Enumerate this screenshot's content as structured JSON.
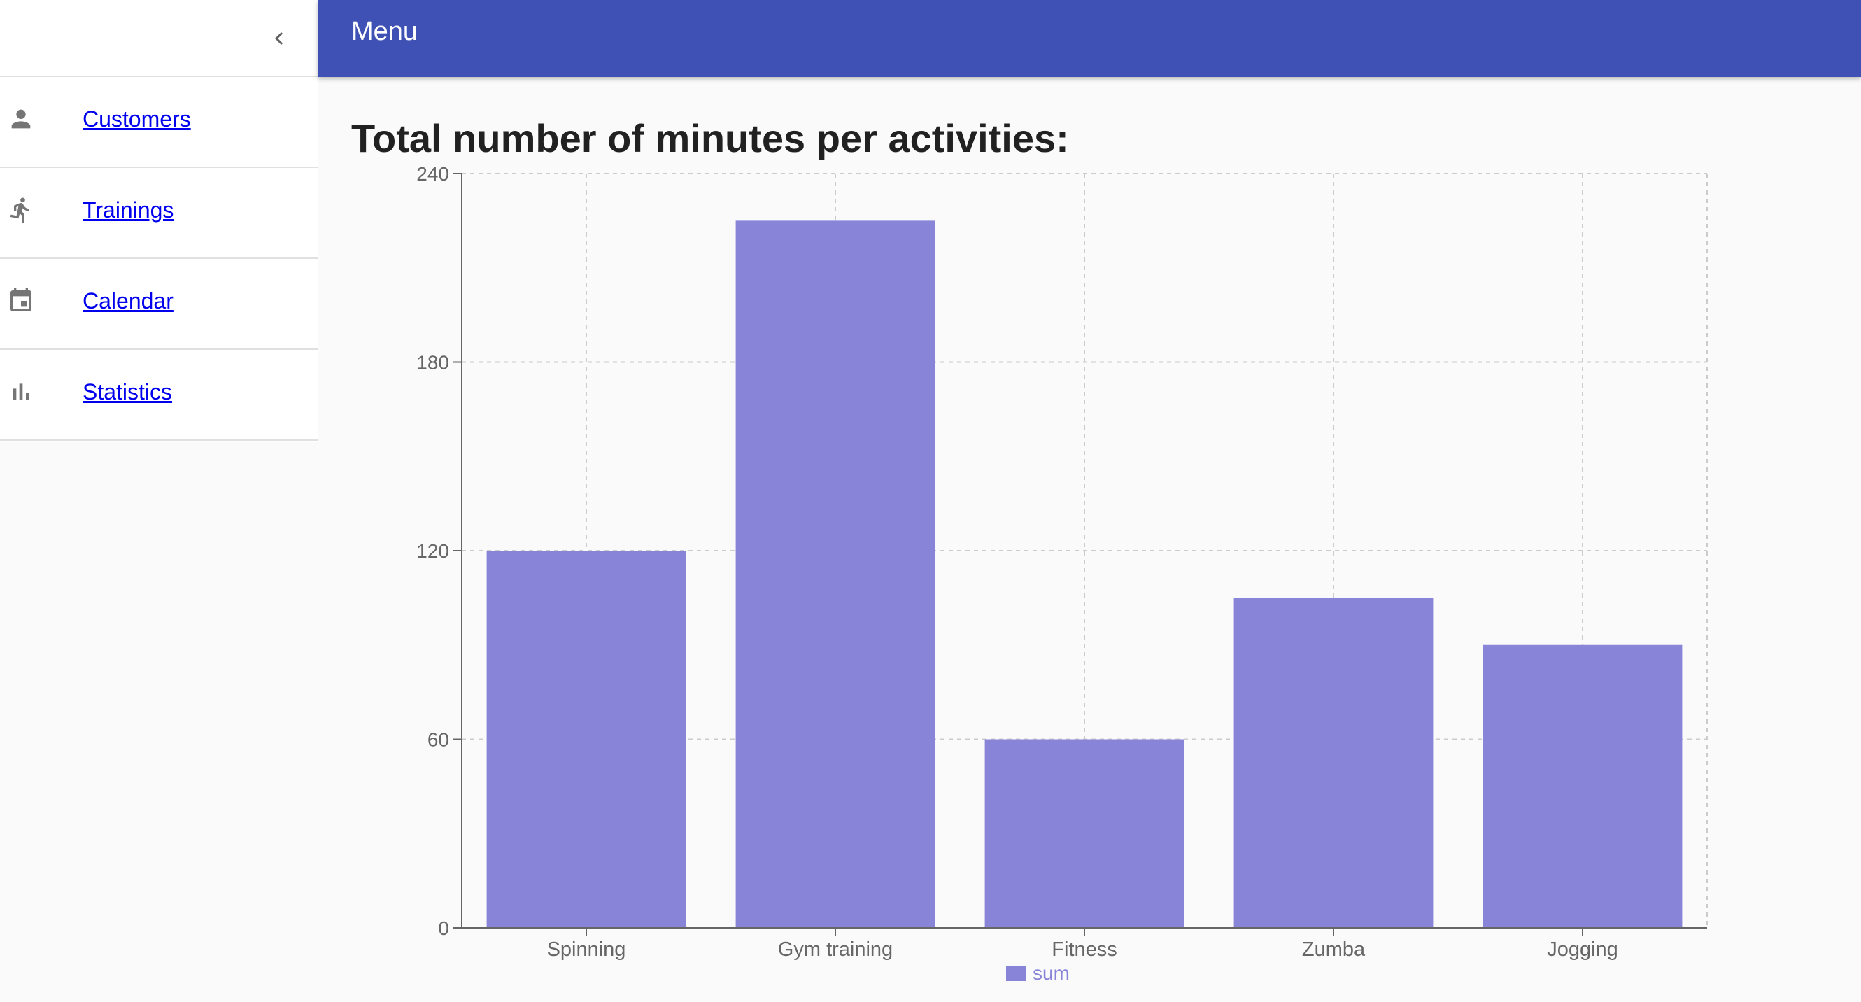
{
  "appbar": {
    "title": "Menu"
  },
  "sidebar": {
    "collapse_icon": "chevron-left-icon",
    "items": [
      {
        "label": "Customers",
        "icon": "person-icon"
      },
      {
        "label": "Trainings",
        "icon": "run-icon"
      },
      {
        "label": "Calendar",
        "icon": "calendar-icon"
      },
      {
        "label": "Statistics",
        "icon": "bar-chart-icon"
      }
    ]
  },
  "main": {
    "title": "Total number of minutes per activities:"
  },
  "colors": {
    "appbar": "#3f51b5",
    "bar": "#8884d8",
    "link": "#0000ee",
    "icon": "#757575"
  },
  "chart_data": {
    "type": "bar",
    "categories": [
      "Spinning",
      "Gym training",
      "Fitness",
      "Zumba",
      "Jogging"
    ],
    "series": [
      {
        "name": "sum",
        "values": [
          120,
          225,
          60,
          105,
          90
        ]
      }
    ],
    "yticks": [
      0,
      60,
      120,
      180,
      240
    ],
    "ylim": [
      0,
      240
    ],
    "grid": true,
    "legend": "bottom-center"
  }
}
